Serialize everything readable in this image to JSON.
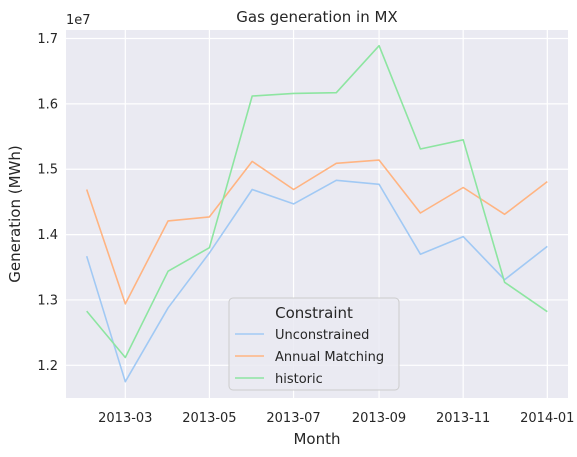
{
  "chart_data": {
    "type": "line",
    "title": "Gas generation in MX",
    "xlabel": "Month",
    "ylabel": "Generation (MWh)",
    "y_offset_label": "1e7",
    "x": [
      "2013-02-01",
      "2013-03-01",
      "2013-04-01",
      "2013-05-01",
      "2013-06-01",
      "2013-07-01",
      "2013-08-01",
      "2013-09-01",
      "2013-10-01",
      "2013-11-01",
      "2013-12-01",
      "2014-01-01"
    ],
    "xticks": [
      "2013-03-01",
      "2013-05-01",
      "2013-07-01",
      "2013-09-01",
      "2013-11-01",
      "2014-01-01"
    ],
    "xtick_labels": [
      "2013-03",
      "2013-05",
      "2013-07",
      "2013-09",
      "2013-11",
      "2014-01"
    ],
    "xlim": [
      "2013-01-17",
      "2014-01-16"
    ],
    "ylim": [
      1.15,
      1.713
    ],
    "yticks": [
      1.2,
      1.3,
      1.4,
      1.5,
      1.6,
      1.7
    ],
    "ytick_labels": [
      "1.2",
      "1.3",
      "1.4",
      "1.5",
      "1.6",
      "1.7"
    ],
    "grid": true,
    "legend": {
      "title": "Constraint",
      "placement": "lower center"
    },
    "series": [
      {
        "name": "Unconstrained",
        "color": "#a1c9f4",
        "values": [
          1.367,
          1.175,
          1.288,
          1.372,
          1.469,
          1.447,
          1.483,
          1.477,
          1.37,
          1.397,
          1.331,
          1.382
        ]
      },
      {
        "name": "Annual Matching",
        "color": "#ffb482",
        "values": [
          1.469,
          1.294,
          1.421,
          1.427,
          1.512,
          1.469,
          1.509,
          1.514,
          1.433,
          1.472,
          1.431,
          1.481
        ]
      },
      {
        "name": "historic",
        "color": "#8de5a1",
        "values": [
          1.283,
          1.212,
          1.344,
          1.38,
          1.612,
          1.616,
          1.617,
          1.689,
          1.531,
          1.545,
          1.327,
          1.282
        ]
      }
    ]
  }
}
